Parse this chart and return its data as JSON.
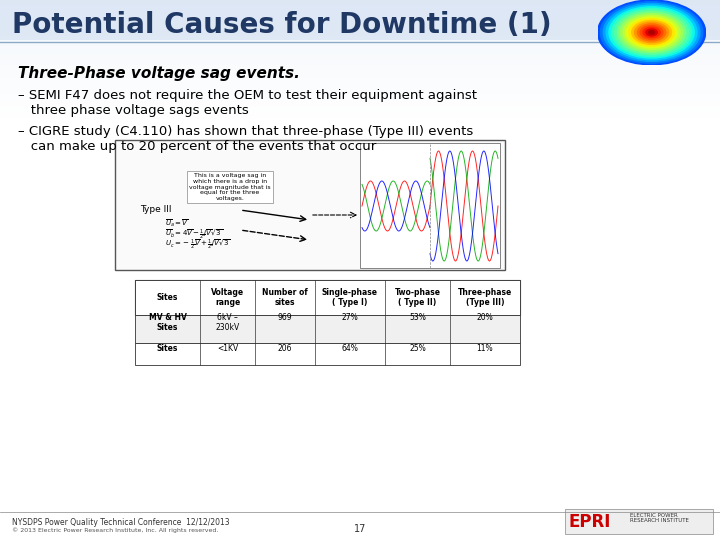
{
  "title": "Potential Causes for Downtime (1)",
  "title_color": "#1F3864",
  "title_fontsize": 20,
  "background_color": "#FFFFFF",
  "header_bg": "#C9D9F0",
  "subtitle": "Three-Phase voltage sag events.",
  "bullets": [
    "– SEMI F47 does not require the OEM to test their equipment against\n   three phase voltage sags events",
    "– CIGRE study (C4.110) has shown that three-phase (Type III) events\n   can make up to 20 percent of the events that occur"
  ],
  "table_headers": [
    "Sites",
    "Voltage\nrange",
    "Number of\nsites",
    "Single-phase\n( Type I)",
    "Two-phase\n( Type II)",
    "Three-phase\n(Type III)"
  ],
  "table_rows": [
    [
      "MV & HV\nSites",
      "6kV –\n230kV",
      "969",
      "27%",
      "53%",
      "20%"
    ],
    [
      "Sites",
      "<1KV",
      "206",
      "64%",
      "25%",
      "11%"
    ]
  ],
  "footer_left1": "NYSDPS Power Quality Technical Conference  12/12/2013",
  "footer_left2": "© 2013 Electric Power Research Institute, Inc. All rights reserved.",
  "footer_page": "17",
  "slide_bg_top": "#D6E4F7",
  "slide_bg_bottom": "#FFFFFF"
}
